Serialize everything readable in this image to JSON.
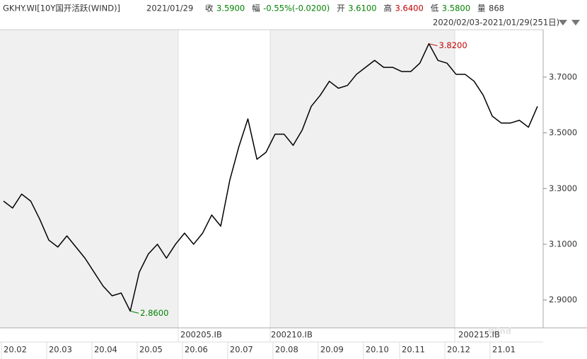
{
  "header": {
    "symbol": "GKHY.WI[10Y国开活跃(WIND)]",
    "date": "2021/01/29",
    "items": [
      {
        "label": "收",
        "value": "3.5900",
        "color": "#008000"
      },
      {
        "label": "幅",
        "value": "-0.55%(-0.0200)",
        "color": "#008000"
      },
      {
        "label": "开",
        "value": "3.6100",
        "color": "#008000"
      },
      {
        "label": "高",
        "value": "3.6400",
        "color": "#c00000"
      },
      {
        "label": "低",
        "value": "3.5800",
        "color": "#008000"
      },
      {
        "label": "量",
        "value": "868",
        "color": "#333333"
      }
    ],
    "range": "2020/02/03-2021/01/29(251日)"
  },
  "chart_data": {
    "type": "line",
    "categories": [
      "20.02",
      null,
      null,
      null,
      null,
      "20.03",
      null,
      null,
      null,
      null,
      "20.04",
      null,
      null,
      null,
      null,
      "20.05",
      null,
      null,
      null,
      null,
      "20.06",
      null,
      null,
      null,
      null,
      "20.07",
      null,
      null,
      null,
      null,
      "20.08",
      null,
      null,
      null,
      null,
      "20.09",
      null,
      null,
      null,
      null,
      "20.10",
      null,
      null,
      null,
      "20.11",
      null,
      null,
      null,
      null,
      "20.12",
      null,
      null,
      null,
      null,
      "21.01",
      null,
      null,
      null,
      null,
      null
    ],
    "series": [
      {
        "name": "GKHY.WI",
        "color": "#000000",
        "values": [
          3.255,
          3.23,
          3.28,
          3.255,
          3.19,
          3.115,
          3.09,
          3.13,
          3.09,
          3.05,
          3.0,
          2.95,
          2.915,
          2.925,
          2.86,
          3.0,
          3.065,
          3.1,
          3.05,
          3.1,
          3.14,
          3.1,
          3.14,
          3.205,
          3.165,
          3.33,
          3.45,
          3.55,
          3.405,
          3.43,
          3.495,
          3.495,
          3.455,
          3.51,
          3.595,
          3.635,
          3.685,
          3.66,
          3.67,
          3.71,
          3.735,
          3.76,
          3.735,
          3.735,
          3.72,
          3.72,
          3.75,
          3.82,
          3.76,
          3.75,
          3.71,
          3.71,
          3.685,
          3.635,
          3.56,
          3.535,
          3.535,
          3.545,
          3.52,
          3.595
        ]
      }
    ],
    "ylim": [
      2.8,
      3.87
    ],
    "yticks": [
      {
        "value": 2.9,
        "label": "2.9000"
      },
      {
        "value": 3.1,
        "label": "3.1000"
      },
      {
        "value": 3.3,
        "label": "3.3000"
      },
      {
        "value": 3.5,
        "label": "3.5000"
      },
      {
        "value": 3.7,
        "label": "3.7000"
      }
    ],
    "annotations": [
      {
        "label": "3.8200",
        "color": "#c00000"
      },
      {
        "label": "2.8600",
        "color": "#008000"
      }
    ],
    "contracts": [
      "200205.IB",
      "200210.IB",
      "200215.IB"
    ],
    "watermark": "Wind"
  }
}
